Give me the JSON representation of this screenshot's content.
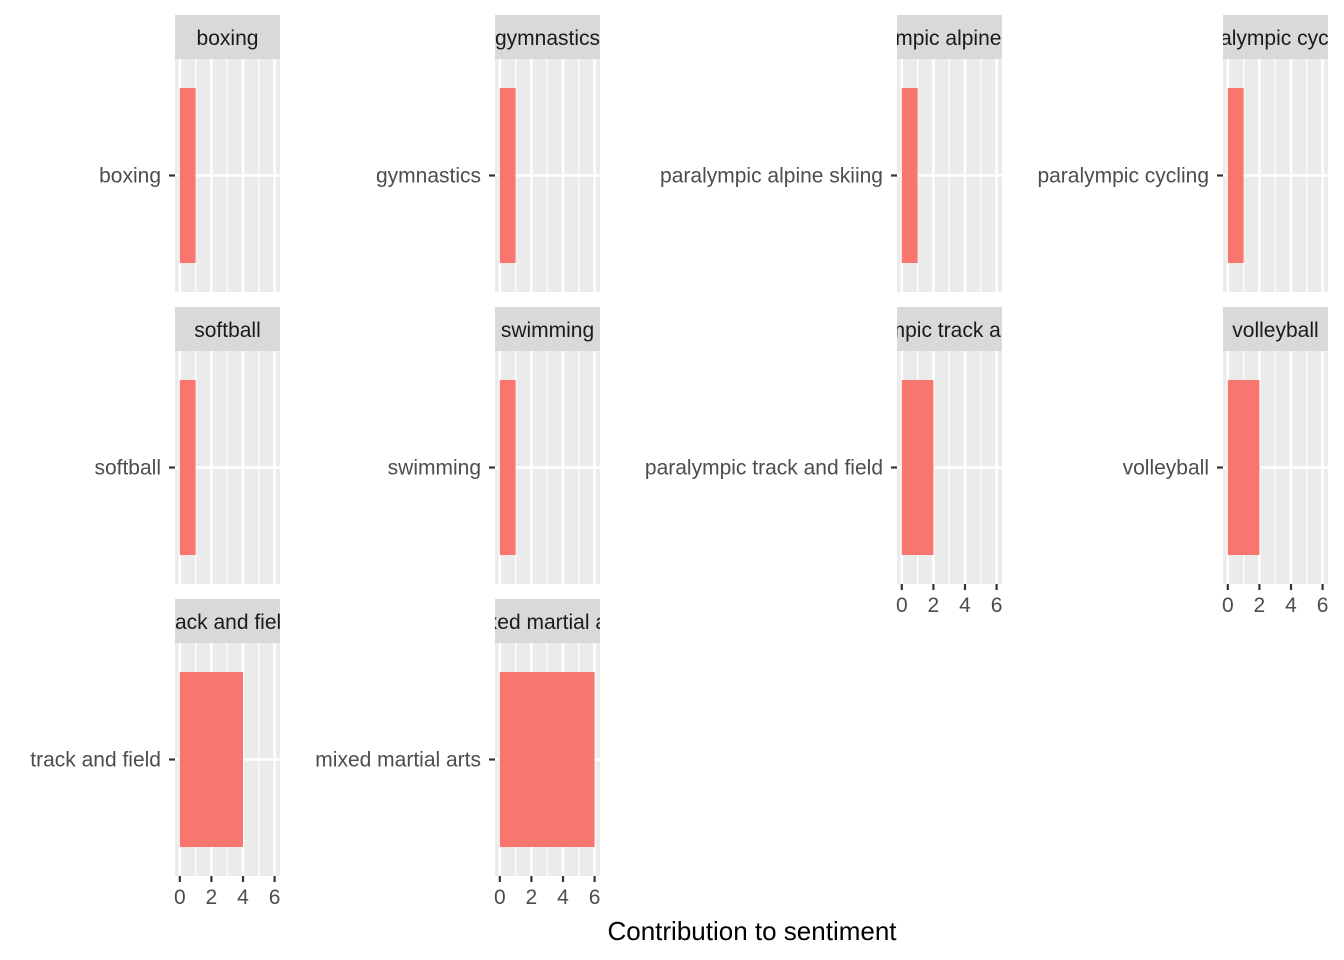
{
  "chart_data": {
    "type": "bar",
    "orientation": "horizontal",
    "facet_layout": {
      "columns": 4,
      "rows": 3,
      "free_y": true
    },
    "xlabel": "Contribution to sentiment",
    "xlim": [
      0,
      6
    ],
    "x_ticks": [
      "0",
      "2",
      "4",
      "6"
    ],
    "grid": true,
    "bar_color": "#F8766D",
    "panel_color": "#EBEBEB",
    "strip_color": "#D9D9D9",
    "facets": [
      {
        "strip": "boxing",
        "category": "boxing",
        "value": 1
      },
      {
        "strip": "gymnastics",
        "category": "gymnastics",
        "value": 1
      },
      {
        "strip": "paralympic alpine skiing",
        "category": "paralympic alpine skiing",
        "value": 1
      },
      {
        "strip": "paralympic cycling",
        "category": "paralympic cycling",
        "value": 1
      },
      {
        "strip": "softball",
        "category": "softball",
        "value": 1
      },
      {
        "strip": "swimming",
        "category": "swimming",
        "value": 1
      },
      {
        "strip": "paralympic track and field",
        "category": "paralympic track and field",
        "value": 2
      },
      {
        "strip": "volleyball",
        "category": "volleyball",
        "value": 2
      },
      {
        "strip": "track and field",
        "category": "track and field",
        "value": 4
      },
      {
        "strip": "mixed martial arts",
        "category": "mixed martial arts",
        "value": 6
      }
    ]
  }
}
